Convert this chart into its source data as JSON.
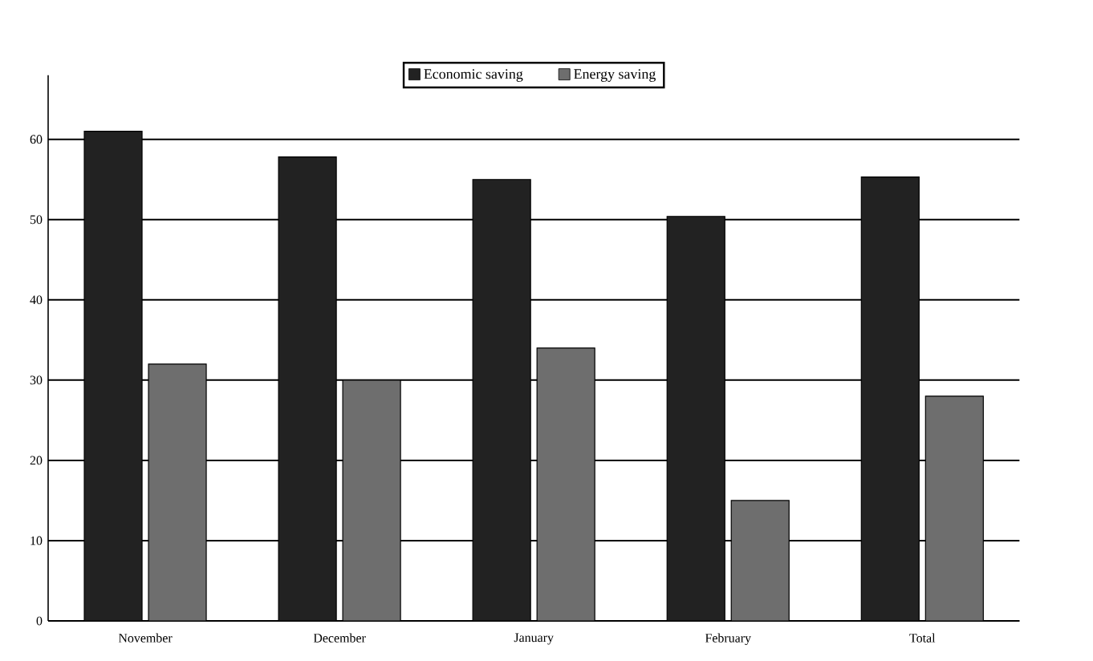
{
  "chart_data": {
    "type": "bar",
    "categories": [
      "November",
      "December",
      "January",
      "February",
      "Total"
    ],
    "series": [
      {
        "name": "Economic saving",
        "color": "#222222",
        "values": [
          61,
          57.8,
          55,
          50.4,
          55.3
        ]
      },
      {
        "name": "Energy saving",
        "color": "#6e6e6e",
        "values": [
          32,
          30,
          34,
          15,
          28
        ]
      }
    ],
    "ylim": [
      0,
      68
    ],
    "yticks": [
      0,
      10,
      20,
      30,
      40,
      50,
      60
    ],
    "grid": "y",
    "legend": "top"
  }
}
